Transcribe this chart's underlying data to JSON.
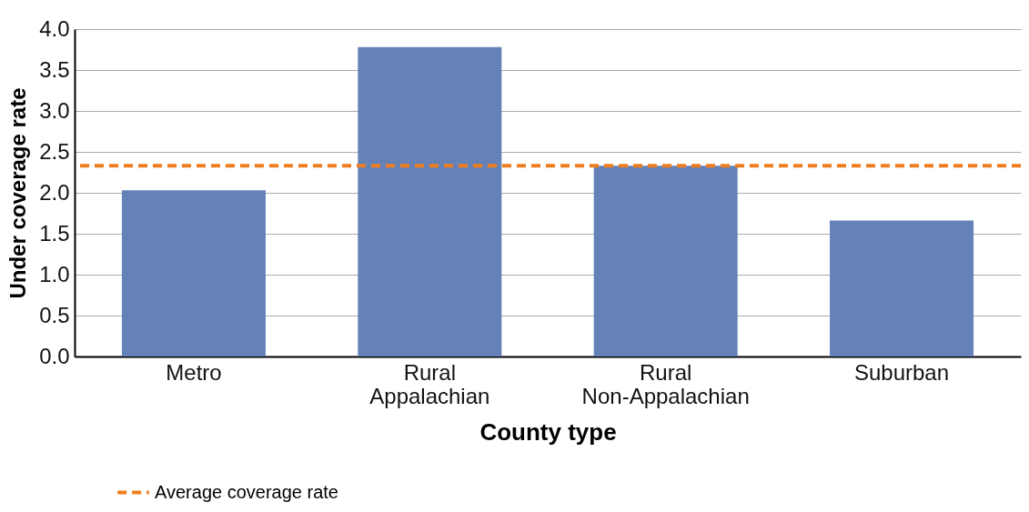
{
  "chart_data": {
    "type": "bar",
    "xlabel": "County type",
    "ylabel": "Under coverage rate",
    "categories": [
      "Metro",
      "Rural Appalachian",
      "Rural Non-Appalachian",
      "Suburban"
    ],
    "values": [
      2.03,
      3.78,
      2.33,
      1.66
    ],
    "color": "#6482b8",
    "ylim": [
      0,
      4
    ],
    "yticks": [
      {
        "value": 0,
        "label": "0.0"
      },
      {
        "value": 0.5,
        "label": "0.5"
      },
      {
        "value": 1,
        "label": "1.0"
      },
      {
        "value": 1.5,
        "label": "1.5"
      },
      {
        "value": 2,
        "label": "2.0"
      },
      {
        "value": 2.5,
        "label": "2.5"
      },
      {
        "value": 3,
        "label": "3.0"
      },
      {
        "value": 3.5,
        "label": "3.5"
      },
      {
        "value": 4,
        "label": "4.0"
      }
    ],
    "grid": "y",
    "legend": "bottom left",
    "ref_lines": [
      {
        "axis": "y",
        "value": 2.33,
        "label": "Average coverage rate",
        "color": "#ee7d1f",
        "line_style": "dashed"
      }
    ]
  }
}
